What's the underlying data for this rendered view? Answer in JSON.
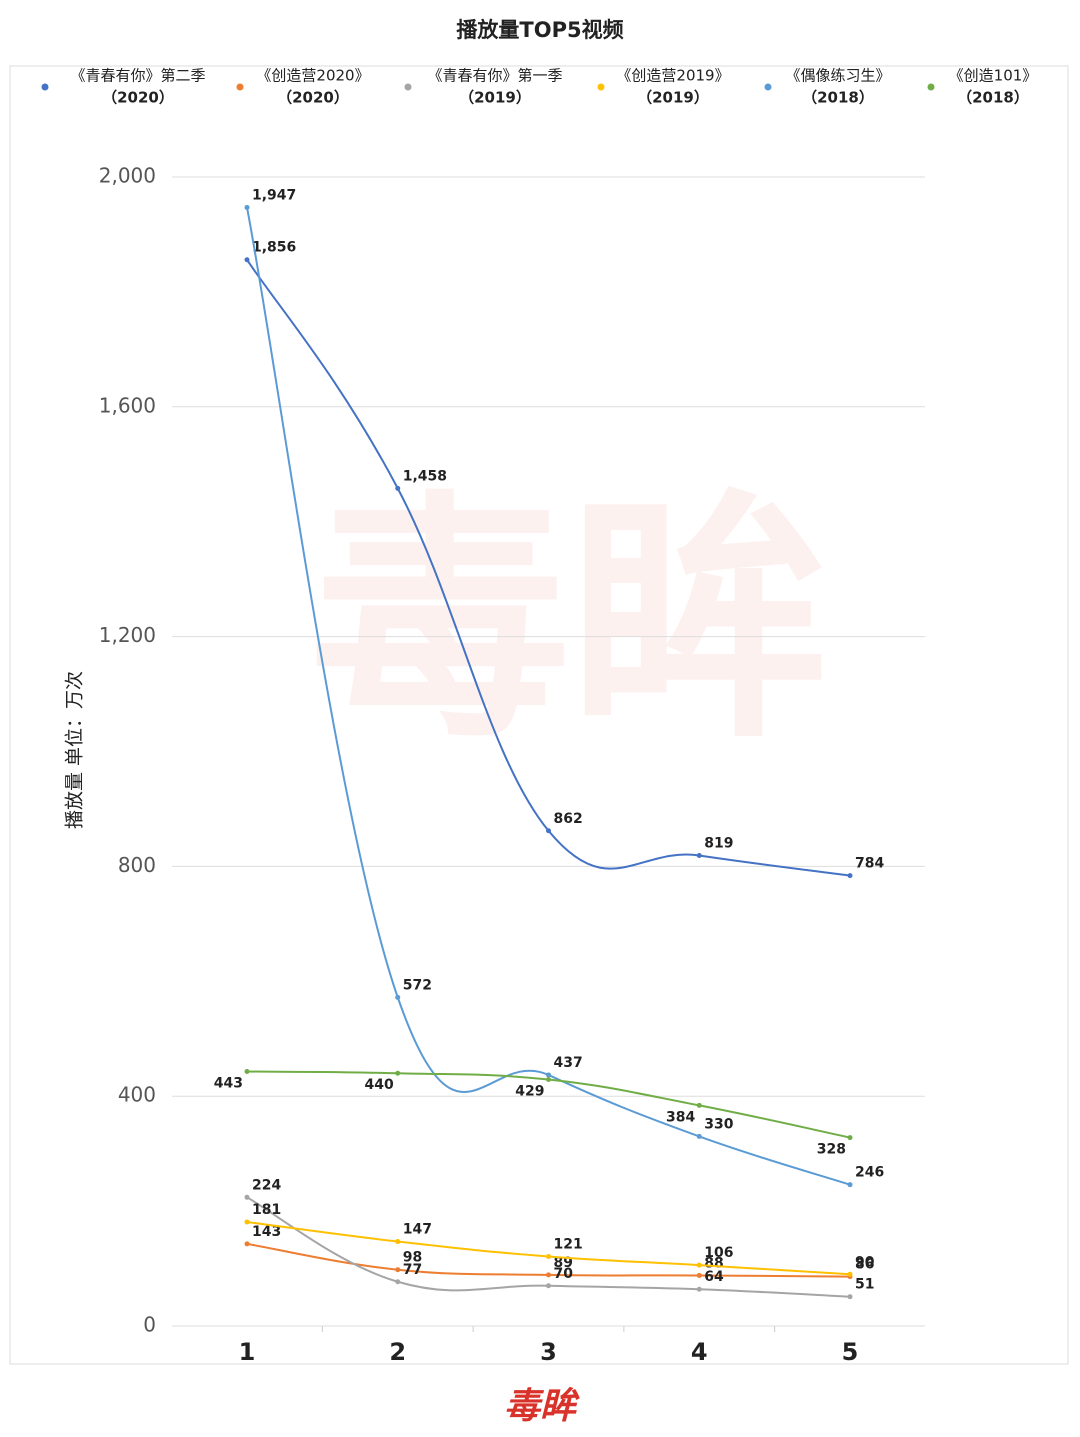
{
  "chart_data": {
    "type": "line",
    "title": "播放量TOP5视频",
    "y_label": "播放量 单位：万次",
    "brand": "毒眸",
    "categories": [
      "1",
      "2",
      "3",
      "4",
      "5"
    ],
    "ylim": [
      0,
      2000
    ],
    "yticks": [
      0,
      400,
      800,
      {
        "value": 1200,
        "label": "1,200"
      },
      {
        "value": 1600,
        "label": "1,600"
      },
      {
        "value": 2000,
        "label": "2,000"
      }
    ],
    "grid": true,
    "legend": "top",
    "series": [
      {
        "name": "《青春有你》第二季",
        "name_line2": "（2020）",
        "color": "#4472c4",
        "values": [
          1856,
          1458,
          862,
          819,
          784
        ],
        "value_labels": [
          "1,856",
          "1,458",
          "862",
          "819",
          "784"
        ]
      },
      {
        "name": "《创造营2020》",
        "name_line2": "（2020）",
        "color": "#ed7d31",
        "values": [
          143,
          98,
          89,
          88,
          86
        ]
      },
      {
        "name": "《青春有你》第一季",
        "name_line2": "（2019）",
        "color": "#a5a5a5",
        "values": [
          224,
          77,
          70,
          64,
          51
        ]
      },
      {
        "name": "《创造营2019》",
        "name_line2": "（2019）",
        "color": "#ffc000",
        "values": [
          181,
          147,
          121,
          106,
          90
        ]
      },
      {
        "name": "《偶像练习生》",
        "name_line2": "（2018）",
        "color": "#5b9bd5",
        "values": [
          1947,
          572,
          437,
          330,
          246
        ],
        "value_labels": [
          "1,947",
          "572",
          "437",
          "330",
          "246"
        ]
      },
      {
        "name": "《创造101》",
        "name_line2": "（2018）",
        "color": "#70ad47",
        "values": [
          443,
          440,
          429,
          384,
          328
        ]
      }
    ]
  }
}
